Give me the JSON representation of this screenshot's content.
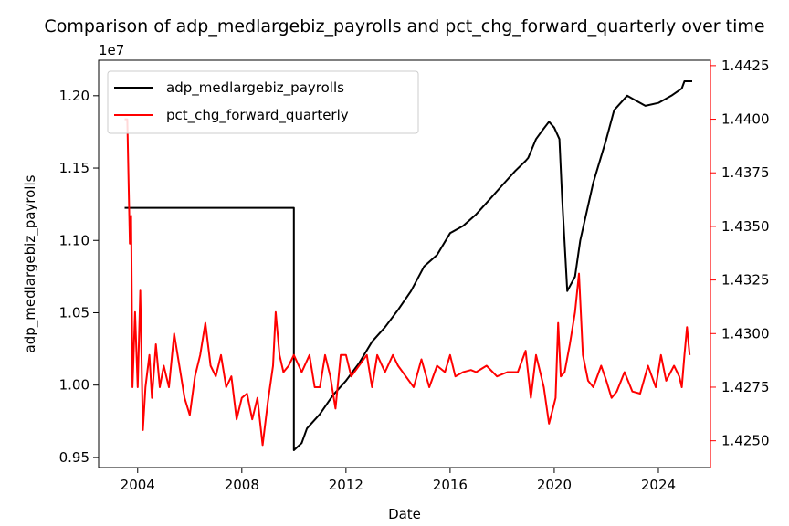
{
  "chart_data": {
    "type": "line",
    "title": "Comparison of adp_medlargebiz_payrolls and pct_chg_forward_quarterly over time",
    "xlabel": "Date",
    "ylabel_left": "adp_medlargebiz_payrolls",
    "left_offset_text": "1e7",
    "xlim": [
      2002.5,
      2026.0
    ],
    "ylim_left": [
      0.943,
      1.2245
    ],
    "ylim_right": [
      1.42375,
      1.44275
    ],
    "x_ticks": [
      2004,
      2008,
      2012,
      2016,
      2020,
      2024
    ],
    "x_tick_labels": [
      "2004",
      "2008",
      "2012",
      "2016",
      "2020",
      "2024"
    ],
    "left_ticks": [
      0.95,
      1.0,
      1.05,
      1.1,
      1.15,
      1.2
    ],
    "left_tick_labels": [
      "0.95",
      "1.00",
      "1.05",
      "1.10",
      "1.15",
      "1.20"
    ],
    "right_ticks": [
      1.425,
      1.4275,
      1.43,
      1.4325,
      1.435,
      1.4375,
      1.44,
      1.4425
    ],
    "right_tick_labels": [
      "1.4250",
      "1.4275",
      "1.4300",
      "1.4325",
      "1.4350",
      "1.4375",
      "1.4400",
      "1.4425"
    ],
    "grid": false,
    "legend_position": "top-left",
    "series": [
      {
        "name": "adp_medlargebiz_payrolls",
        "axis": "left",
        "color": "#000000",
        "x": [
          2003.5,
          2010.0,
          2010.0,
          2010.3,
          2010.5,
          2011.0,
          2011.5,
          2012.0,
          2012.5,
          2013.0,
          2013.5,
          2014.0,
          2014.5,
          2015.0,
          2015.5,
          2016.0,
          2016.5,
          2017.0,
          2017.5,
          2018.0,
          2018.5,
          2018.9,
          2019.0,
          2019.3,
          2019.5,
          2019.8,
          2020.0,
          2020.2,
          2020.3,
          2020.5,
          2020.8,
          2021.0,
          2021.5,
          2022.0,
          2022.3,
          2022.8,
          2023.0,
          2023.5,
          2024.0,
          2024.5,
          2024.9,
          2025.0,
          2025.3
        ],
        "values": [
          1.1225,
          1.1225,
          0.955,
          0.96,
          0.97,
          0.98,
          0.993,
          1.003,
          1.015,
          1.03,
          1.04,
          1.052,
          1.065,
          1.082,
          1.09,
          1.105,
          1.11,
          1.118,
          1.128,
          1.138,
          1.148,
          1.155,
          1.157,
          1.17,
          1.175,
          1.182,
          1.178,
          1.17,
          1.13,
          1.065,
          1.075,
          1.1,
          1.14,
          1.17,
          1.19,
          1.2,
          1.198,
          1.193,
          1.195,
          1.2,
          1.205,
          1.21,
          1.21
        ]
      },
      {
        "name": "pct_chg_forward_quarterly",
        "axis": "right",
        "color": "#ff0000",
        "x": [
          2003.5,
          2003.6,
          2003.7,
          2003.75,
          2003.8,
          2003.9,
          2004.0,
          2004.1,
          2004.2,
          2004.3,
          2004.45,
          2004.55,
          2004.7,
          2004.85,
          2005.0,
          2005.2,
          2005.4,
          2005.6,
          2005.8,
          2006.0,
          2006.2,
          2006.4,
          2006.6,
          2006.8,
          2007.0,
          2007.2,
          2007.4,
          2007.6,
          2007.8,
          2008.0,
          2008.2,
          2008.4,
          2008.6,
          2008.8,
          2009.0,
          2009.2,
          2009.3,
          2009.45,
          2009.6,
          2009.8,
          2010.0,
          2010.3,
          2010.6,
          2010.8,
          2011.0,
          2011.2,
          2011.4,
          2011.6,
          2011.8,
          2012.0,
          2012.2,
          2012.5,
          2012.8,
          2013.0,
          2013.2,
          2013.5,
          2013.8,
          2014.0,
          2014.3,
          2014.6,
          2014.9,
          2015.2,
          2015.5,
          2015.8,
          2016.0,
          2016.2,
          2016.5,
          2016.8,
          2017.0,
          2017.4,
          2017.8,
          2018.2,
          2018.6,
          2018.9,
          2019.1,
          2019.3,
          2019.6,
          2019.8,
          2019.95,
          2020.05,
          2020.15,
          2020.25,
          2020.4,
          2020.6,
          2020.8,
          2020.95,
          2021.1,
          2021.3,
          2021.5,
          2021.8,
          2022.0,
          2022.2,
          2022.4,
          2022.7,
          2023.0,
          2023.3,
          2023.6,
          2023.9,
          2024.1,
          2024.3,
          2024.6,
          2024.8,
          2024.9,
          2025.0,
          2025.1,
          2025.2
        ],
        "values": [
          1.44,
          1.44,
          1.4342,
          1.4355,
          1.4275,
          1.431,
          1.4275,
          1.432,
          1.4255,
          1.4275,
          1.429,
          1.427,
          1.4295,
          1.4275,
          1.4285,
          1.4275,
          1.43,
          1.4285,
          1.427,
          1.4262,
          1.428,
          1.429,
          1.4305,
          1.4285,
          1.428,
          1.429,
          1.4275,
          1.428,
          1.426,
          1.427,
          1.4272,
          1.426,
          1.427,
          1.4248,
          1.4268,
          1.4285,
          1.431,
          1.429,
          1.4282,
          1.4285,
          1.429,
          1.4282,
          1.429,
          1.4275,
          1.4275,
          1.429,
          1.428,
          1.4265,
          1.429,
          1.429,
          1.428,
          1.4285,
          1.429,
          1.4275,
          1.429,
          1.4282,
          1.429,
          1.4285,
          1.428,
          1.4275,
          1.4288,
          1.4275,
          1.4285,
          1.4282,
          1.429,
          1.428,
          1.4282,
          1.4283,
          1.4282,
          1.4285,
          1.428,
          1.4282,
          1.4282,
          1.4292,
          1.427,
          1.429,
          1.4275,
          1.4258,
          1.4265,
          1.427,
          1.4305,
          1.428,
          1.4282,
          1.4295,
          1.431,
          1.4328,
          1.429,
          1.4278,
          1.4275,
          1.4285,
          1.4278,
          1.427,
          1.4273,
          1.4282,
          1.4273,
          1.4272,
          1.4285,
          1.4275,
          1.429,
          1.4278,
          1.4285,
          1.428,
          1.4275,
          1.429,
          1.4303,
          1.429
        ]
      }
    ]
  }
}
